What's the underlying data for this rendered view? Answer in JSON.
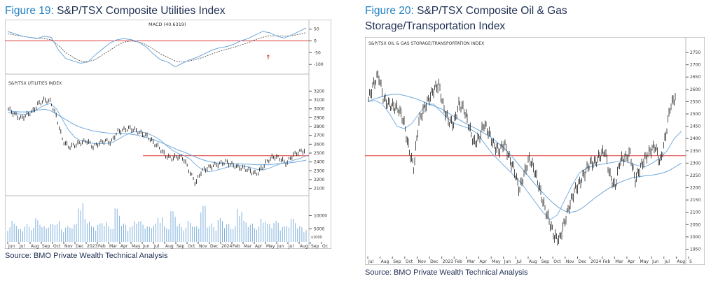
{
  "figures": [
    {
      "number": "Figure 19",
      "title": "S&P/TSX Composite Utilities Index",
      "source": "Source: BMO Private Wealth Technical Analysis",
      "panels": {
        "macd_label": "MACD (40.6319)",
        "price_label": "S&P/TSX UTILITIES INDEX",
        "volume_note": "x1000"
      }
    },
    {
      "number": "Figure 20",
      "title_line1": "S&P/TSX Composite Oil & Gas",
      "title_line2": "Storage/Transportation Index",
      "source": "Source: BMO Private Wealth Technical Analysis",
      "panels": {
        "price_label": "S&P/TSX OIL & GAS STORAGE/TRANSPORTATION INDEX"
      }
    }
  ],
  "colors": {
    "title_number": "#1f7fc3",
    "title_text": "#1e2f52",
    "price": "#222222",
    "moving_average": "#6fa8dc",
    "macd_signal": "#444444",
    "resistance_line": "#e03a3a",
    "volume": "#7fb0de"
  },
  "chart_data": [
    {
      "id": "utilities",
      "type": "line",
      "title": "S&P/TSX UTILITIES INDEX",
      "x_tick_labels": [
        "Jun",
        "Jul",
        "Aug",
        "Sep",
        "Oct",
        "Nov",
        "Dec",
        "2023",
        "Feb",
        "Mar",
        "Apr",
        "May",
        "Jun",
        "Jul",
        "Aug",
        "Sep",
        "Oct",
        "Nov",
        "Dec",
        "2024",
        "Feb",
        "Mar",
        "Apr",
        "May",
        "Jun",
        "Jul",
        "Aug",
        "Sep",
        "Oc"
      ],
      "price_ticks": [
        3200,
        3100,
        3000,
        2900,
        2800,
        2700,
        2600,
        2500,
        2400,
        2300,
        2200,
        2100
      ],
      "ylim": [
        2050,
        3250
      ],
      "resistance_level": 2470,
      "series": [
        {
          "name": "Price",
          "values": [
            3000,
            2940,
            2890,
            2930,
            2970,
            3060,
            3100,
            3080,
            2900,
            2640,
            2570,
            2590,
            2620,
            2640,
            2570,
            2610,
            2640,
            2620,
            2740,
            2760,
            2780,
            2760,
            2720,
            2690,
            2620,
            2560,
            2470,
            2440,
            2460,
            2440,
            2290,
            2160,
            2300,
            2330,
            2360,
            2380,
            2400,
            2370,
            2340,
            2330,
            2300,
            2260,
            2330,
            2420,
            2460,
            2440,
            2380,
            2470,
            2510,
            2530
          ]
        },
        {
          "name": "Moving Average",
          "values": [
            2980,
            2970,
            2965,
            2965,
            2970,
            2985,
            2995,
            2980,
            2940,
            2900,
            2860,
            2820,
            2790,
            2770,
            2750,
            2740,
            2730,
            2722,
            2720,
            2720,
            2715,
            2705,
            2690,
            2672,
            2650,
            2625,
            2596,
            2565,
            2535,
            2510,
            2480,
            2450,
            2425,
            2405,
            2392,
            2385,
            2382,
            2380,
            2378,
            2376,
            2373,
            2368,
            2367,
            2370,
            2377,
            2383,
            2388,
            2396,
            2408,
            2420
          ]
        },
        {
          "name": "Short Moving Average",
          "values": [
            2960,
            2950,
            2940,
            2940,
            2960,
            3000,
            3040,
            3060,
            3000,
            2880,
            2760,
            2680,
            2640,
            2625,
            2610,
            2605,
            2610,
            2615,
            2650,
            2690,
            2725,
            2745,
            2740,
            2720,
            2690,
            2650,
            2590,
            2535,
            2495,
            2470,
            2430,
            2360,
            2310,
            2290,
            2300,
            2320,
            2340,
            2355,
            2360,
            2350,
            2335,
            2315,
            2310,
            2330,
            2360,
            2385,
            2400,
            2420,
            2440,
            2470
          ]
        }
      ],
      "macd": {
        "ylim": [
          -135,
          55
        ],
        "ticks": [
          50,
          0,
          -50,
          -100
        ],
        "zero_line": 0,
        "macd_values": [
          40,
          30,
          20,
          15,
          10,
          20,
          15,
          -40,
          -75,
          -85,
          -95,
          -90,
          -60,
          -35,
          -10,
          5,
          10,
          5,
          -5,
          -25,
          -55,
          -80,
          -90,
          -110,
          -95,
          -80,
          -70,
          -55,
          -40,
          -30,
          -25,
          -15,
          0,
          10,
          25,
          40,
          35,
          20,
          12,
          25,
          40,
          55
        ],
        "signal_values": [
          30,
          25,
          20,
          15,
          12,
          10,
          5,
          -20,
          -50,
          -70,
          -85,
          -88,
          -80,
          -60,
          -40,
          -20,
          -5,
          0,
          -5,
          -15,
          -35,
          -55,
          -70,
          -85,
          -90,
          -85,
          -78,
          -68,
          -56,
          -45,
          -36,
          -28,
          -18,
          -8,
          5,
          15,
          22,
          22,
          20,
          22,
          28,
          35
        ],
        "arrow_note": "↑"
      },
      "volume": {
        "ticks": [
          10000,
          5000
        ],
        "values": [
          6,
          8,
          5,
          7,
          6,
          9,
          6,
          7,
          8,
          5,
          6,
          7,
          15,
          9,
          6,
          7,
          8,
          6,
          13,
          7,
          6,
          9,
          8,
          6,
          7,
          10,
          6,
          12,
          7,
          6,
          8,
          6,
          14,
          7,
          6,
          9,
          7,
          6,
          13,
          8,
          7,
          6,
          9,
          7,
          8,
          6,
          7,
          9,
          6,
          5
        ]
      }
    },
    {
      "id": "oil_gas",
      "type": "line",
      "title": "S&P/TSX OIL & GAS STORAGE/TRANSPORTATION INDEX",
      "x_tick_labels": [
        "Jul",
        "Aug",
        "Sep",
        "Oct",
        "Nov",
        "Dec",
        "2023",
        "Feb",
        "Mar",
        "Apr",
        "May",
        "Jun",
        "Jul",
        "Aug",
        "Sep",
        "Oct",
        "Nov",
        "Dec",
        "2024",
        "Feb",
        "Mar",
        "Apr",
        "May",
        "Jun",
        "Jul",
        "Aug",
        "S"
      ],
      "price_ticks": [
        2750,
        2700,
        2650,
        2600,
        2550,
        2500,
        2450,
        2400,
        2350,
        2300,
        2250,
        2200,
        2150,
        2100,
        2050,
        2000,
        1950
      ],
      "ylim": [
        1920,
        2790
      ],
      "resistance_level": 2330,
      "series": [
        {
          "name": "Price",
          "values": [
            2560,
            2620,
            2660,
            2560,
            2540,
            2530,
            2520,
            2470,
            2360,
            2280,
            2470,
            2520,
            2560,
            2600,
            2620,
            2520,
            2470,
            2460,
            2540,
            2520,
            2450,
            2380,
            2400,
            2460,
            2420,
            2370,
            2350,
            2380,
            2320,
            2270,
            2190,
            2260,
            2320,
            2270,
            2200,
            2120,
            2060,
            2000,
            1990,
            2060,
            2130,
            2190,
            2220,
            2260,
            2300,
            2300,
            2330,
            2350,
            2250,
            2200,
            2310,
            2320,
            2340,
            2230,
            2280,
            2320,
            2350,
            2370,
            2300,
            2400,
            2530,
            2570
          ]
        },
        {
          "name": "Moving Average",
          "values": [
            2550,
            2560,
            2568,
            2575,
            2580,
            2580,
            2575,
            2568,
            2560,
            2550,
            2540,
            2530,
            2520,
            2505,
            2490,
            2475,
            2460,
            2448,
            2435,
            2420,
            2405,
            2385,
            2365,
            2340,
            2310,
            2280,
            2250,
            2220,
            2190,
            2165,
            2140,
            2120,
            2105,
            2100,
            2105,
            2120,
            2140,
            2160,
            2178,
            2195,
            2210,
            2222,
            2232,
            2240,
            2245,
            2248,
            2250,
            2255,
            2260,
            2270,
            2285,
            2300
          ]
        },
        {
          "name": "Short Moving Average",
          "values": [
            2550,
            2555,
            2540,
            2500,
            2450,
            2440,
            2460,
            2500,
            2540,
            2540,
            2510,
            2480,
            2460,
            2450,
            2440,
            2420,
            2380,
            2340,
            2310,
            2280,
            2250,
            2220,
            2180,
            2140,
            2100,
            2070,
            2090,
            2150,
            2210,
            2260,
            2280,
            2290,
            2295,
            2300,
            2305,
            2310,
            2300,
            2290,
            2285,
            2300,
            2320,
            2350,
            2400,
            2430
          ]
        }
      ]
    }
  ]
}
